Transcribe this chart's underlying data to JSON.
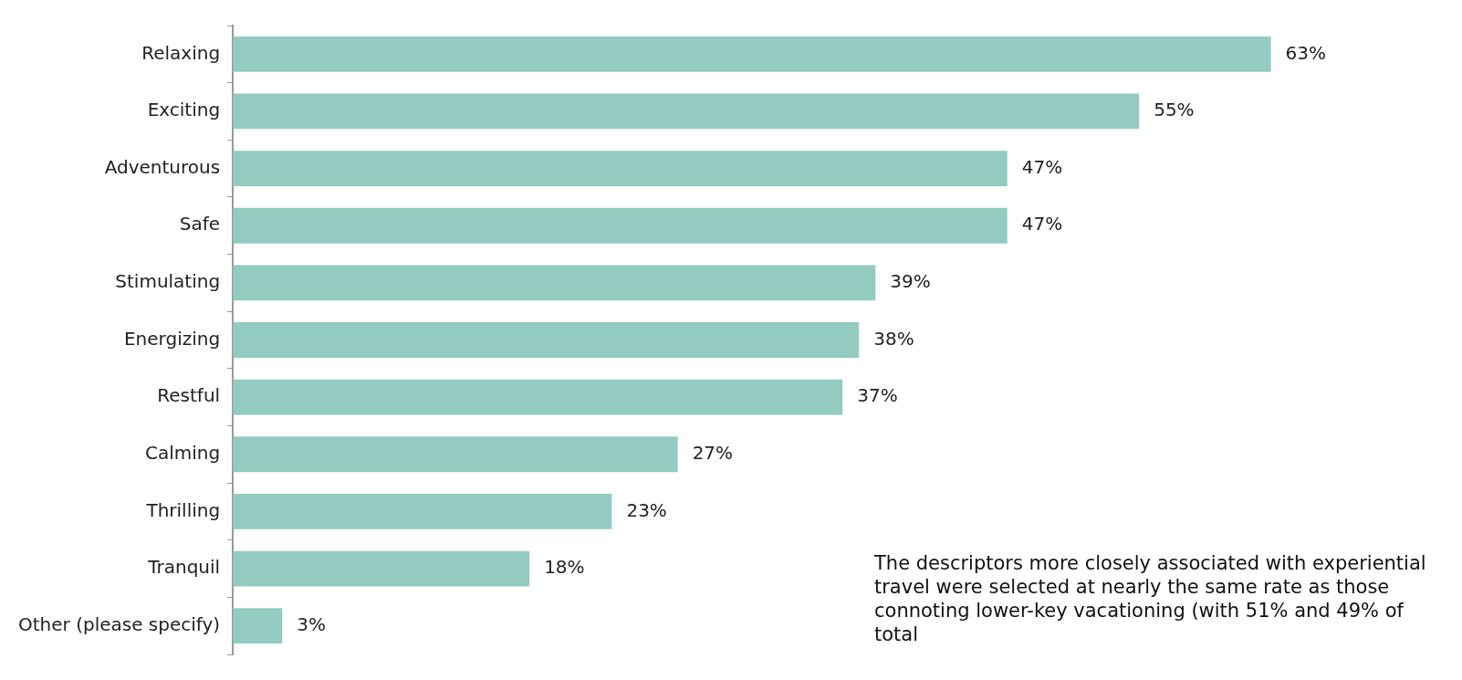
{
  "chart_data": {
    "type": "bar",
    "orientation": "horizontal",
    "categories": [
      "Relaxing",
      "Exciting",
      "Adventurous",
      "Safe",
      "Stimulating",
      "Energizing",
      "Restful",
      "Calming",
      "Thrilling",
      "Tranquil",
      "Other (please specify)"
    ],
    "values": [
      63,
      55,
      47,
      47,
      39,
      38,
      37,
      27,
      23,
      18,
      3
    ],
    "value_labels": [
      "63%",
      "55%",
      "47%",
      "47%",
      "39%",
      "38%",
      "37%",
      "27%",
      "23%",
      "18%",
      "3%"
    ],
    "color": "#93cbc1",
    "annotations": [
      "The descriptors more closely associated with experiential travel were selected at nearly the same rate as those connoting lower-key vacationing (with 51% and 49% of total"
    ]
  }
}
